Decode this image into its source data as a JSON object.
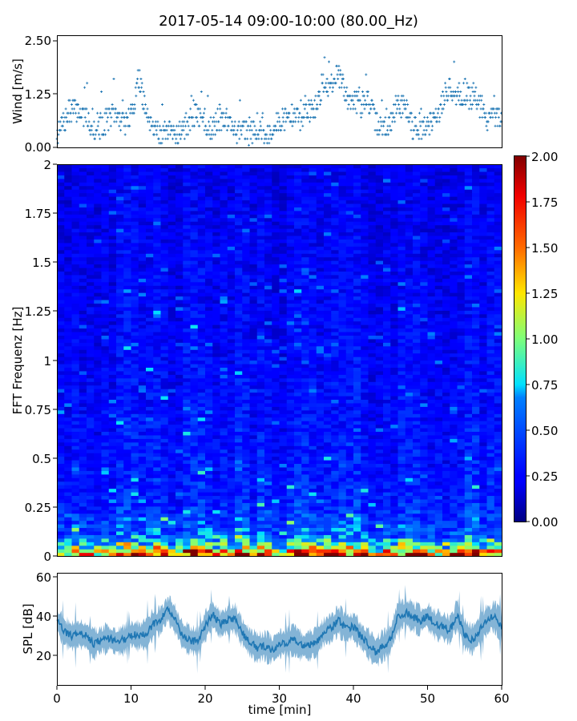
{
  "chart_data": [
    {
      "type": "scatter",
      "title": "2017-05-14 09:00-10:00 (80.00_Hz)",
      "ylabel": "Wind [m/s]",
      "xlim": [
        0,
        60
      ],
      "ylim": [
        0,
        2.6
      ],
      "yticks": [
        "0.00",
        "1.25",
        "2.50"
      ],
      "marker": "+",
      "series_color": "#1f77b4",
      "wind_profile": {
        "x": [
          0,
          1,
          2,
          3,
          4,
          5,
          6,
          7,
          8,
          9,
          10,
          11,
          12,
          13,
          14,
          15,
          16,
          17,
          18,
          19,
          20,
          21,
          22,
          23,
          24,
          25,
          26,
          27,
          28,
          29,
          30,
          31,
          32,
          33,
          34,
          35,
          36,
          37,
          38,
          39,
          40,
          41,
          42,
          43,
          44,
          45,
          46,
          47,
          48,
          49,
          50,
          51,
          52,
          53,
          54,
          55,
          56,
          57,
          58,
          59,
          60
        ],
        "y": [
          0.3,
          0.6,
          0.9,
          0.85,
          0.7,
          0.45,
          0.45,
          0.7,
          0.75,
          0.55,
          0.7,
          1.6,
          0.85,
          0.55,
          0.3,
          0.3,
          0.35,
          0.4,
          0.6,
          0.8,
          0.5,
          0.5,
          0.65,
          0.7,
          0.4,
          0.4,
          0.3,
          0.5,
          0.25,
          0.4,
          0.6,
          0.7,
          0.7,
          0.7,
          0.8,
          0.9,
          1.6,
          1.4,
          1.7,
          1.2,
          1.15,
          1.0,
          1.1,
          0.6,
          0.4,
          0.6,
          1.0,
          1.0,
          0.5,
          0.45,
          0.5,
          0.7,
          1.0,
          1.4,
          1.2,
          1.2,
          1.2,
          1.0,
          0.7,
          0.7,
          0.6
        ]
      }
    },
    {
      "type": "heatmap",
      "ylabel": "FFT Frequenz [Hz]",
      "xlim": [
        0,
        60
      ],
      "ylim": [
        0,
        2
      ],
      "yticks": [
        "0",
        "0.25",
        "0.5",
        "0.75",
        "1",
        "1.25",
        "1.5",
        "1.75",
        "2"
      ],
      "colormap": "jet",
      "colorbar": {
        "range": [
          0,
          2
        ],
        "ticks": [
          "0.00",
          "0.25",
          "0.50",
          "0.75",
          "1.00",
          "1.25",
          "1.50",
          "1.75",
          "2.00"
        ]
      },
      "intensity_by_band": {
        "freq_hz": [
          0.0,
          0.05,
          0.1,
          0.25,
          0.5,
          1.0,
          2.0
        ],
        "value": [
          1.7,
          0.9,
          0.55,
          0.35,
          0.3,
          0.25,
          0.2
        ]
      }
    },
    {
      "type": "line",
      "ylabel": "SPL [dB]",
      "xlabel": "time [min]",
      "xlim": [
        0,
        60
      ],
      "ylim": [
        5,
        62
      ],
      "yticks": [
        "20",
        "40",
        "60"
      ],
      "xticks": [
        "0",
        "10",
        "20",
        "30",
        "40",
        "50",
        "60"
      ],
      "series_color": "#1f77b4",
      "spl_profile": {
        "x": [
          0,
          1,
          2,
          3,
          4,
          5,
          6,
          7,
          8,
          9,
          10,
          11,
          12,
          13,
          14,
          15,
          16,
          17,
          18,
          19,
          20,
          21,
          22,
          23,
          24,
          25,
          26,
          27,
          28,
          29,
          30,
          31,
          32,
          33,
          34,
          35,
          36,
          37,
          38,
          39,
          40,
          41,
          42,
          43,
          44,
          45,
          46,
          47,
          48,
          49,
          50,
          51,
          52,
          53,
          54,
          55,
          56,
          57,
          58,
          59,
          60
        ],
        "y": [
          38,
          32,
          30,
          31,
          30,
          26,
          28,
          29,
          27,
          28,
          31,
          30,
          31,
          36,
          38,
          44,
          38,
          30,
          28,
          27,
          35,
          41,
          36,
          38,
          39,
          32,
          27,
          24,
          25,
          23,
          26,
          27,
          28,
          25,
          25,
          27,
          32,
          34,
          38,
          34,
          35,
          30,
          26,
          22,
          25,
          28,
          40,
          42,
          40,
          38,
          40,
          36,
          35,
          33,
          41,
          31,
          28,
          33,
          38,
          40,
          35
        ]
      }
    }
  ]
}
